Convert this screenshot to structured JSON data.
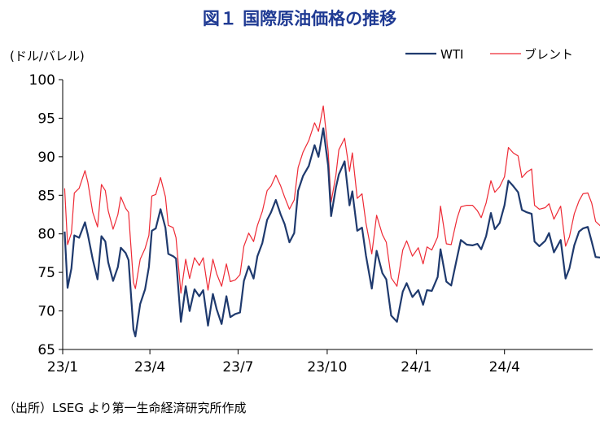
{
  "chart_data": {
    "type": "line",
    "title": "図１ 国際原油価格の推移",
    "ylabel": "(ドル/バレル)",
    "ylim": [
      65,
      100
    ],
    "yticks": [
      65,
      70,
      75,
      80,
      85,
      90,
      95,
      100
    ],
    "xlim": [
      "2023-01",
      "2024-07"
    ],
    "xticks": [
      {
        "label": "23/1",
        "value": "2023-01"
      },
      {
        "label": "23/4",
        "value": "2023-04"
      },
      {
        "label": "23/7",
        "value": "2023-07"
      },
      {
        "label": "23/10",
        "value": "2023-10"
      },
      {
        "label": "24/1",
        "value": "2024-01"
      },
      {
        "label": "24/4",
        "value": "2024-04"
      }
    ],
    "legend_position": "top-right",
    "grid": false,
    "source": "（出所）LSEG より第一生命経済研究所作成",
    "series": [
      {
        "name": "WTI",
        "color": "#1f3a6e",
        "points": [
          [
            "2023-01-03",
            80.3
          ],
          [
            "2023-01-06",
            73.0
          ],
          [
            "2023-01-10",
            75.5
          ],
          [
            "2023-01-13",
            79.8
          ],
          [
            "2023-01-18",
            79.5
          ],
          [
            "2023-01-24",
            81.5
          ],
          [
            "2023-01-27",
            79.9
          ],
          [
            "2023-02-01",
            76.7
          ],
          [
            "2023-02-06",
            74.1
          ],
          [
            "2023-02-10",
            79.7
          ],
          [
            "2023-02-14",
            79.0
          ],
          [
            "2023-02-17",
            76.3
          ],
          [
            "2023-02-22",
            73.9
          ],
          [
            "2023-02-27",
            75.7
          ],
          [
            "2023-03-02",
            78.2
          ],
          [
            "2023-03-07",
            77.5
          ],
          [
            "2023-03-10",
            76.6
          ],
          [
            "2023-03-15",
            67.6
          ],
          [
            "2023-03-17",
            66.7
          ],
          [
            "2023-03-22",
            70.9
          ],
          [
            "2023-03-27",
            72.8
          ],
          [
            "2023-03-31",
            75.7
          ],
          [
            "2023-04-03",
            80.4
          ],
          [
            "2023-04-07",
            80.7
          ],
          [
            "2023-04-12",
            83.2
          ],
          [
            "2023-04-17",
            80.8
          ],
          [
            "2023-04-20",
            77.4
          ],
          [
            "2023-04-25",
            77.1
          ],
          [
            "2023-04-28",
            76.8
          ],
          [
            "2023-05-03",
            68.6
          ],
          [
            "2023-05-08",
            73.2
          ],
          [
            "2023-05-12",
            70.0
          ],
          [
            "2023-05-17",
            72.8
          ],
          [
            "2023-05-22",
            71.9
          ],
          [
            "2023-05-26",
            72.7
          ],
          [
            "2023-05-31",
            68.1
          ],
          [
            "2023-06-05",
            72.2
          ],
          [
            "2023-06-09",
            70.2
          ],
          [
            "2023-06-14",
            68.3
          ],
          [
            "2023-06-19",
            71.9
          ],
          [
            "2023-06-23",
            69.2
          ],
          [
            "2023-06-28",
            69.6
          ],
          [
            "2023-07-03",
            69.8
          ],
          [
            "2023-07-07",
            73.9
          ],
          [
            "2023-07-12",
            75.8
          ],
          [
            "2023-07-17",
            74.2
          ],
          [
            "2023-07-21",
            77.1
          ],
          [
            "2023-07-26",
            78.8
          ],
          [
            "2023-07-31",
            81.8
          ],
          [
            "2023-08-04",
            82.8
          ],
          [
            "2023-08-09",
            84.4
          ],
          [
            "2023-08-14",
            82.5
          ],
          [
            "2023-08-18",
            81.3
          ],
          [
            "2023-08-23",
            78.9
          ],
          [
            "2023-08-28",
            80.1
          ],
          [
            "2023-09-01",
            85.6
          ],
          [
            "2023-09-06",
            87.5
          ],
          [
            "2023-09-12",
            88.8
          ],
          [
            "2023-09-18",
            91.5
          ],
          [
            "2023-09-22",
            90.0
          ],
          [
            "2023-09-27",
            93.7
          ],
          [
            "2023-10-02",
            88.8
          ],
          [
            "2023-10-05",
            82.3
          ],
          [
            "2023-10-10",
            86.0
          ],
          [
            "2023-10-13",
            87.7
          ],
          [
            "2023-10-19",
            89.4
          ],
          [
            "2023-10-24",
            83.7
          ],
          [
            "2023-10-27",
            85.5
          ],
          [
            "2023-11-01",
            80.4
          ],
          [
            "2023-11-06",
            80.8
          ],
          [
            "2023-11-10",
            77.2
          ],
          [
            "2023-11-16",
            72.9
          ],
          [
            "2023-11-21",
            77.8
          ],
          [
            "2023-11-27",
            74.9
          ],
          [
            "2023-12-01",
            74.1
          ],
          [
            "2023-12-06",
            69.4
          ],
          [
            "2023-12-12",
            68.6
          ],
          [
            "2023-12-18",
            72.5
          ],
          [
            "2023-12-22",
            73.6
          ],
          [
            "2023-12-28",
            71.8
          ],
          [
            "2024-01-03",
            72.7
          ],
          [
            "2024-01-08",
            70.8
          ],
          [
            "2024-01-12",
            72.7
          ],
          [
            "2024-01-17",
            72.6
          ],
          [
            "2024-01-23",
            74.4
          ],
          [
            "2024-01-26",
            78.0
          ],
          [
            "2024-02-01",
            73.8
          ],
          [
            "2024-02-06",
            73.3
          ],
          [
            "2024-02-12",
            76.9
          ],
          [
            "2024-02-16",
            79.2
          ],
          [
            "2024-02-22",
            78.6
          ],
          [
            "2024-02-28",
            78.5
          ],
          [
            "2024-03-04",
            78.7
          ],
          [
            "2024-03-08",
            78.0
          ],
          [
            "2024-03-13",
            79.7
          ],
          [
            "2024-03-18",
            82.7
          ],
          [
            "2024-03-22",
            80.6
          ],
          [
            "2024-03-27",
            81.4
          ],
          [
            "2024-04-01",
            83.7
          ],
          [
            "2024-04-05",
            86.9
          ],
          [
            "2024-04-10",
            86.2
          ],
          [
            "2024-04-15",
            85.4
          ],
          [
            "2024-04-19",
            83.1
          ],
          [
            "2024-04-24",
            82.8
          ],
          [
            "2024-04-29",
            82.6
          ],
          [
            "2024-05-02",
            79.0
          ],
          [
            "2024-05-07",
            78.4
          ],
          [
            "2024-05-13",
            79.1
          ],
          [
            "2024-05-17",
            80.1
          ],
          [
            "2024-05-22",
            77.6
          ],
          [
            "2024-05-29",
            79.2
          ],
          [
            "2024-06-03",
            74.2
          ],
          [
            "2024-06-07",
            75.5
          ],
          [
            "2024-06-12",
            78.5
          ],
          [
            "2024-06-17",
            80.3
          ],
          [
            "2024-06-21",
            80.7
          ],
          [
            "2024-06-26",
            80.9
          ],
          [
            "2024-06-30",
            79.0
          ],
          [
            "2024-07-04",
            77.0
          ],
          [
            "2024-07-10",
            76.9
          ]
        ]
      },
      {
        "name": "ブレント",
        "color": "#ee2a35",
        "points": [
          [
            "2023-01-03",
            85.9
          ],
          [
            "2023-01-06",
            78.6
          ],
          [
            "2023-01-10",
            80.1
          ],
          [
            "2023-01-13",
            85.3
          ],
          [
            "2023-01-18",
            85.9
          ],
          [
            "2023-01-24",
            88.2
          ],
          [
            "2023-01-27",
            86.7
          ],
          [
            "2023-02-01",
            82.8
          ],
          [
            "2023-02-06",
            80.9
          ],
          [
            "2023-02-10",
            86.4
          ],
          [
            "2023-02-14",
            85.6
          ],
          [
            "2023-02-17",
            83.0
          ],
          [
            "2023-02-22",
            80.6
          ],
          [
            "2023-02-27",
            82.5
          ],
          [
            "2023-03-02",
            84.8
          ],
          [
            "2023-03-07",
            83.3
          ],
          [
            "2023-03-10",
            82.8
          ],
          [
            "2023-03-15",
            73.7
          ],
          [
            "2023-03-17",
            72.9
          ],
          [
            "2023-03-22",
            76.7
          ],
          [
            "2023-03-27",
            78.1
          ],
          [
            "2023-03-31",
            79.8
          ],
          [
            "2023-04-03",
            84.9
          ],
          [
            "2023-04-07",
            85.1
          ],
          [
            "2023-04-12",
            87.3
          ],
          [
            "2023-04-17",
            84.8
          ],
          [
            "2023-04-20",
            81.1
          ],
          [
            "2023-04-25",
            80.8
          ],
          [
            "2023-04-28",
            79.5
          ],
          [
            "2023-05-03",
            72.3
          ],
          [
            "2023-05-08",
            76.7
          ],
          [
            "2023-05-12",
            74.2
          ],
          [
            "2023-05-17",
            76.9
          ],
          [
            "2023-05-22",
            75.9
          ],
          [
            "2023-05-26",
            76.9
          ],
          [
            "2023-05-31",
            72.7
          ],
          [
            "2023-06-05",
            76.7
          ],
          [
            "2023-06-09",
            74.8
          ],
          [
            "2023-06-14",
            73.2
          ],
          [
            "2023-06-19",
            76.1
          ],
          [
            "2023-06-23",
            73.8
          ],
          [
            "2023-06-28",
            74.0
          ],
          [
            "2023-07-03",
            74.7
          ],
          [
            "2023-07-07",
            78.4
          ],
          [
            "2023-07-12",
            80.1
          ],
          [
            "2023-07-17",
            79.0
          ],
          [
            "2023-07-21",
            81.1
          ],
          [
            "2023-07-26",
            82.9
          ],
          [
            "2023-07-31",
            85.6
          ],
          [
            "2023-08-04",
            86.2
          ],
          [
            "2023-08-09",
            87.6
          ],
          [
            "2023-08-14",
            86.2
          ],
          [
            "2023-08-18",
            84.8
          ],
          [
            "2023-08-23",
            83.2
          ],
          [
            "2023-08-28",
            84.4
          ],
          [
            "2023-09-01",
            88.6
          ],
          [
            "2023-09-06",
            90.6
          ],
          [
            "2023-09-12",
            92.1
          ],
          [
            "2023-09-18",
            94.4
          ],
          [
            "2023-09-22",
            93.3
          ],
          [
            "2023-09-27",
            96.6
          ],
          [
            "2023-10-02",
            90.7
          ],
          [
            "2023-10-05",
            84.1
          ],
          [
            "2023-10-10",
            87.6
          ],
          [
            "2023-10-13",
            90.9
          ],
          [
            "2023-10-19",
            92.4
          ],
          [
            "2023-10-24",
            88.1
          ],
          [
            "2023-10-27",
            90.5
          ],
          [
            "2023-11-01",
            84.6
          ],
          [
            "2023-11-06",
            85.2
          ],
          [
            "2023-11-10",
            81.4
          ],
          [
            "2023-11-16",
            77.4
          ],
          [
            "2023-11-21",
            82.4
          ],
          [
            "2023-11-27",
            79.9
          ],
          [
            "2023-12-01",
            78.9
          ],
          [
            "2023-12-06",
            74.3
          ],
          [
            "2023-12-12",
            73.2
          ],
          [
            "2023-12-18",
            77.9
          ],
          [
            "2023-12-22",
            79.1
          ],
          [
            "2023-12-28",
            77.1
          ],
          [
            "2024-01-03",
            78.2
          ],
          [
            "2024-01-08",
            76.1
          ],
          [
            "2024-01-12",
            78.3
          ],
          [
            "2024-01-17",
            77.9
          ],
          [
            "2024-01-23",
            79.6
          ],
          [
            "2024-01-26",
            83.6
          ],
          [
            "2024-02-01",
            78.7
          ],
          [
            "2024-02-06",
            78.6
          ],
          [
            "2024-02-12",
            82.0
          ],
          [
            "2024-02-16",
            83.5
          ],
          [
            "2024-02-22",
            83.7
          ],
          [
            "2024-02-28",
            83.7
          ],
          [
            "2024-03-04",
            83.0
          ],
          [
            "2024-03-08",
            82.1
          ],
          [
            "2024-03-13",
            84.0
          ],
          [
            "2024-03-18",
            86.9
          ],
          [
            "2024-03-22",
            85.4
          ],
          [
            "2024-03-27",
            86.1
          ],
          [
            "2024-04-01",
            87.4
          ],
          [
            "2024-04-05",
            91.2
          ],
          [
            "2024-04-10",
            90.5
          ],
          [
            "2024-04-15",
            90.1
          ],
          [
            "2024-04-19",
            87.3
          ],
          [
            "2024-04-24",
            88.0
          ],
          [
            "2024-04-29",
            88.4
          ],
          [
            "2024-05-02",
            83.7
          ],
          [
            "2024-05-07",
            83.2
          ],
          [
            "2024-05-13",
            83.4
          ],
          [
            "2024-05-17",
            83.9
          ],
          [
            "2024-05-22",
            81.9
          ],
          [
            "2024-05-29",
            83.6
          ],
          [
            "2024-06-03",
            78.4
          ],
          [
            "2024-06-07",
            79.6
          ],
          [
            "2024-06-12",
            82.6
          ],
          [
            "2024-06-17",
            84.3
          ],
          [
            "2024-06-21",
            85.2
          ],
          [
            "2024-06-26",
            85.3
          ],
          [
            "2024-06-30",
            84.0
          ],
          [
            "2024-07-04",
            81.6
          ],
          [
            "2024-07-10",
            80.9
          ]
        ]
      }
    ]
  }
}
